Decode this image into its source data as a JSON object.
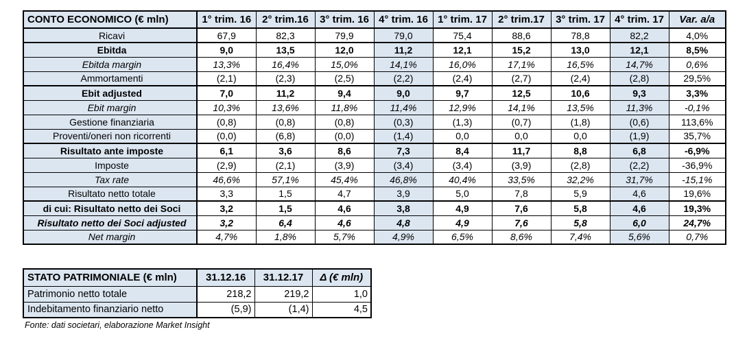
{
  "income_table": {
    "title": "CONTO ECONOMICO (€ mln)",
    "columns": [
      "1° trim. 16",
      "2° trim.16",
      "3° trim. 16",
      "4° trim. 16",
      "1° trim. 17",
      "2° trim.17",
      "3° trim. 17",
      "4° trim. 17",
      "Var. a/a"
    ],
    "highlighted_columns": [
      3,
      7
    ],
    "rows": [
      {
        "label": "Ricavi",
        "style": "normal",
        "values": [
          "67,9",
          "82,3",
          "79,9",
          "79,0",
          "75,4",
          "88,6",
          "78,8",
          "82,2",
          "4,0%"
        ]
      },
      {
        "label": "Ebitda",
        "style": "bold",
        "values": [
          "9,0",
          "13,5",
          "12,0",
          "11,2",
          "12,1",
          "15,2",
          "13,0",
          "12,1",
          "8,5%"
        ]
      },
      {
        "label": "Ebitda margin",
        "style": "italic",
        "values": [
          "13,3%",
          "16,4%",
          "15,0%",
          "14,1%",
          "16,0%",
          "17,1%",
          "16,5%",
          "14,7%",
          "0,6%"
        ]
      },
      {
        "label": "Ammortamenti",
        "style": "normal",
        "values": [
          "(2,1)",
          "(2,3)",
          "(2,5)",
          "(2,2)",
          "(2,4)",
          "(2,7)",
          "(2,4)",
          "(2,8)",
          "29,5%"
        ]
      },
      {
        "label": "Ebit adjusted",
        "style": "bold",
        "values": [
          "7,0",
          "11,2",
          "9,4",
          "9,0",
          "9,7",
          "12,5",
          "10,6",
          "9,3",
          "3,3%"
        ]
      },
      {
        "label": "Ebit margin",
        "style": "italic",
        "values": [
          "10,3%",
          "13,6%",
          "11,8%",
          "11,4%",
          "12,9%",
          "14,1%",
          "13,5%",
          "11,3%",
          "-0,1%"
        ]
      },
      {
        "label": "Gestione finanziaria",
        "style": "normal",
        "values": [
          "(0,8)",
          "(0,8)",
          "(0,8)",
          "(0,3)",
          "(1,3)",
          "(0,7)",
          "(1,8)",
          "(0,6)",
          "113,6%"
        ]
      },
      {
        "label": "Proventi/oneri non ricorrenti",
        "style": "normal",
        "values": [
          "(0,0)",
          "(6,8)",
          "(0,0)",
          "(1,4)",
          "0,0",
          "0,0",
          "0,0",
          "(1,9)",
          "35,7%"
        ]
      },
      {
        "label": "Risultato ante imposte",
        "style": "bold",
        "values": [
          "6,1",
          "3,6",
          "8,6",
          "7,3",
          "8,4",
          "11,7",
          "8,8",
          "6,8",
          "-6,9%"
        ]
      },
      {
        "label": "Imposte",
        "style": "normal",
        "values": [
          "(2,9)",
          "(2,1)",
          "(3,9)",
          "(3,4)",
          "(3,4)",
          "(3,9)",
          "(2,8)",
          "(2,2)",
          "-36,9%"
        ]
      },
      {
        "label": "Tax rate",
        "style": "italic",
        "values": [
          "46,6%",
          "57,1%",
          "45,4%",
          "46,8%",
          "40,4%",
          "33,5%",
          "32,2%",
          "31,7%",
          "-15,1%"
        ]
      },
      {
        "label": "Risultato netto totale",
        "style": "normal",
        "values": [
          "3,3",
          "1,5",
          "4,7",
          "3,9",
          "5,0",
          "7,8",
          "5,9",
          "4,6",
          "19,6%"
        ]
      },
      {
        "label": "di cui: Risultato netto dei Soci",
        "style": "bold",
        "values": [
          "3,2",
          "1,5",
          "4,6",
          "3,8",
          "4,9",
          "7,6",
          "5,8",
          "4,6",
          "19,3%"
        ]
      },
      {
        "label": "Risultato netto dei Soci adjusted",
        "style": "bold-italic",
        "values": [
          "3,2",
          "6,4",
          "4,6",
          "4,8",
          "4,9",
          "7,6",
          "5,8",
          "6,0",
          "24,7%"
        ]
      },
      {
        "label": "Net margin",
        "style": "italic",
        "values": [
          "4,7%",
          "1,8%",
          "5,7%",
          "4,9%",
          "6,5%",
          "8,6%",
          "7,4%",
          "5,6%",
          "0,7%"
        ]
      }
    ]
  },
  "balance_table": {
    "title": "STATO PATRIMONIALE (€ mln)",
    "columns": [
      "31.12.16",
      "31.12.17",
      "Δ (€ mln)"
    ],
    "rows": [
      {
        "label": "Patrimonio netto totale",
        "values": [
          "218,2",
          "219,2",
          "1,0"
        ]
      },
      {
        "label": "Indebitamento finanziario netto",
        "values": [
          "(5,9)",
          "(1,4)",
          "4,5"
        ]
      }
    ]
  },
  "footnote": "Fonte: dati societari, elaborazione Market Insight",
  "colors": {
    "header_fill": "#DCE6F1",
    "highlight_fill": "#DCE6F1",
    "border": "#000000"
  }
}
